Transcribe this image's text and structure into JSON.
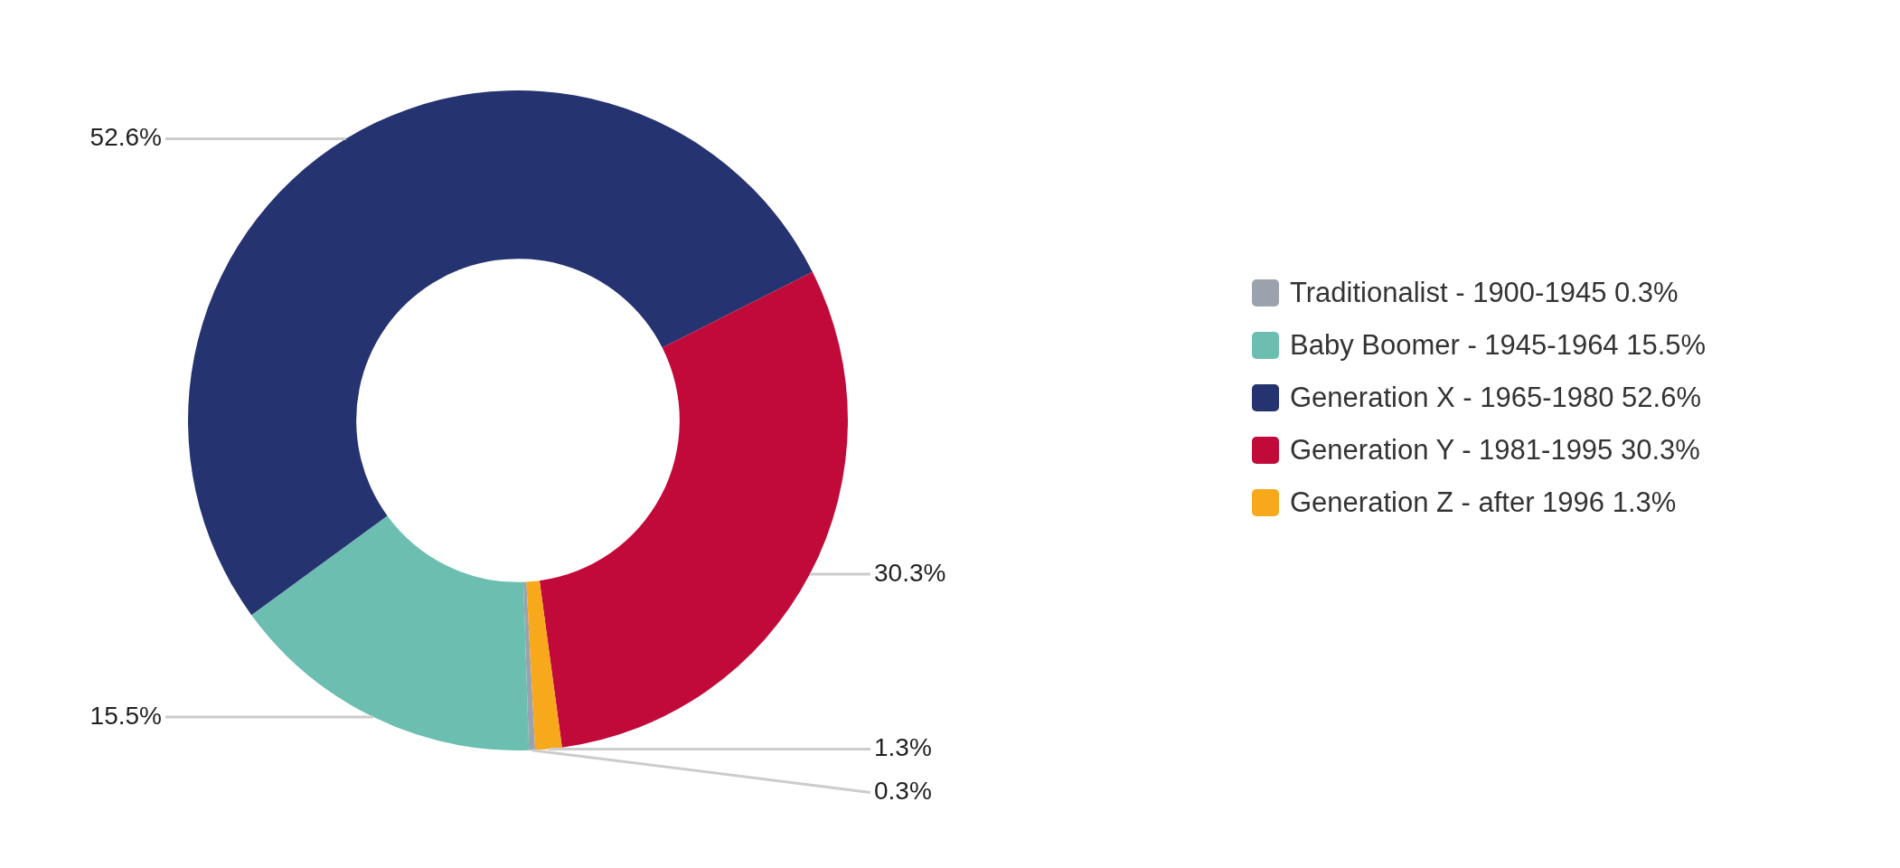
{
  "chart_data": {
    "type": "donut",
    "categories": [
      "Traditionalist - 1900-1945",
      "Baby Boomer - 1945-1964",
      "Generation X - 1965-1980",
      "Generation Y - 1981-1995",
      "Generation Z - after 1996"
    ],
    "values": [
      0.3,
      15.5,
      52.6,
      30.3,
      1.3
    ],
    "value_labels": [
      "0.3%",
      "15.5%",
      "52.6%",
      "30.3%",
      "1.3%"
    ],
    "colors": [
      "#9aa3ad",
      "#6cbfb0",
      "#263371",
      "#c20a3a",
      "#f8a81b"
    ],
    "legend": "right"
  }
}
